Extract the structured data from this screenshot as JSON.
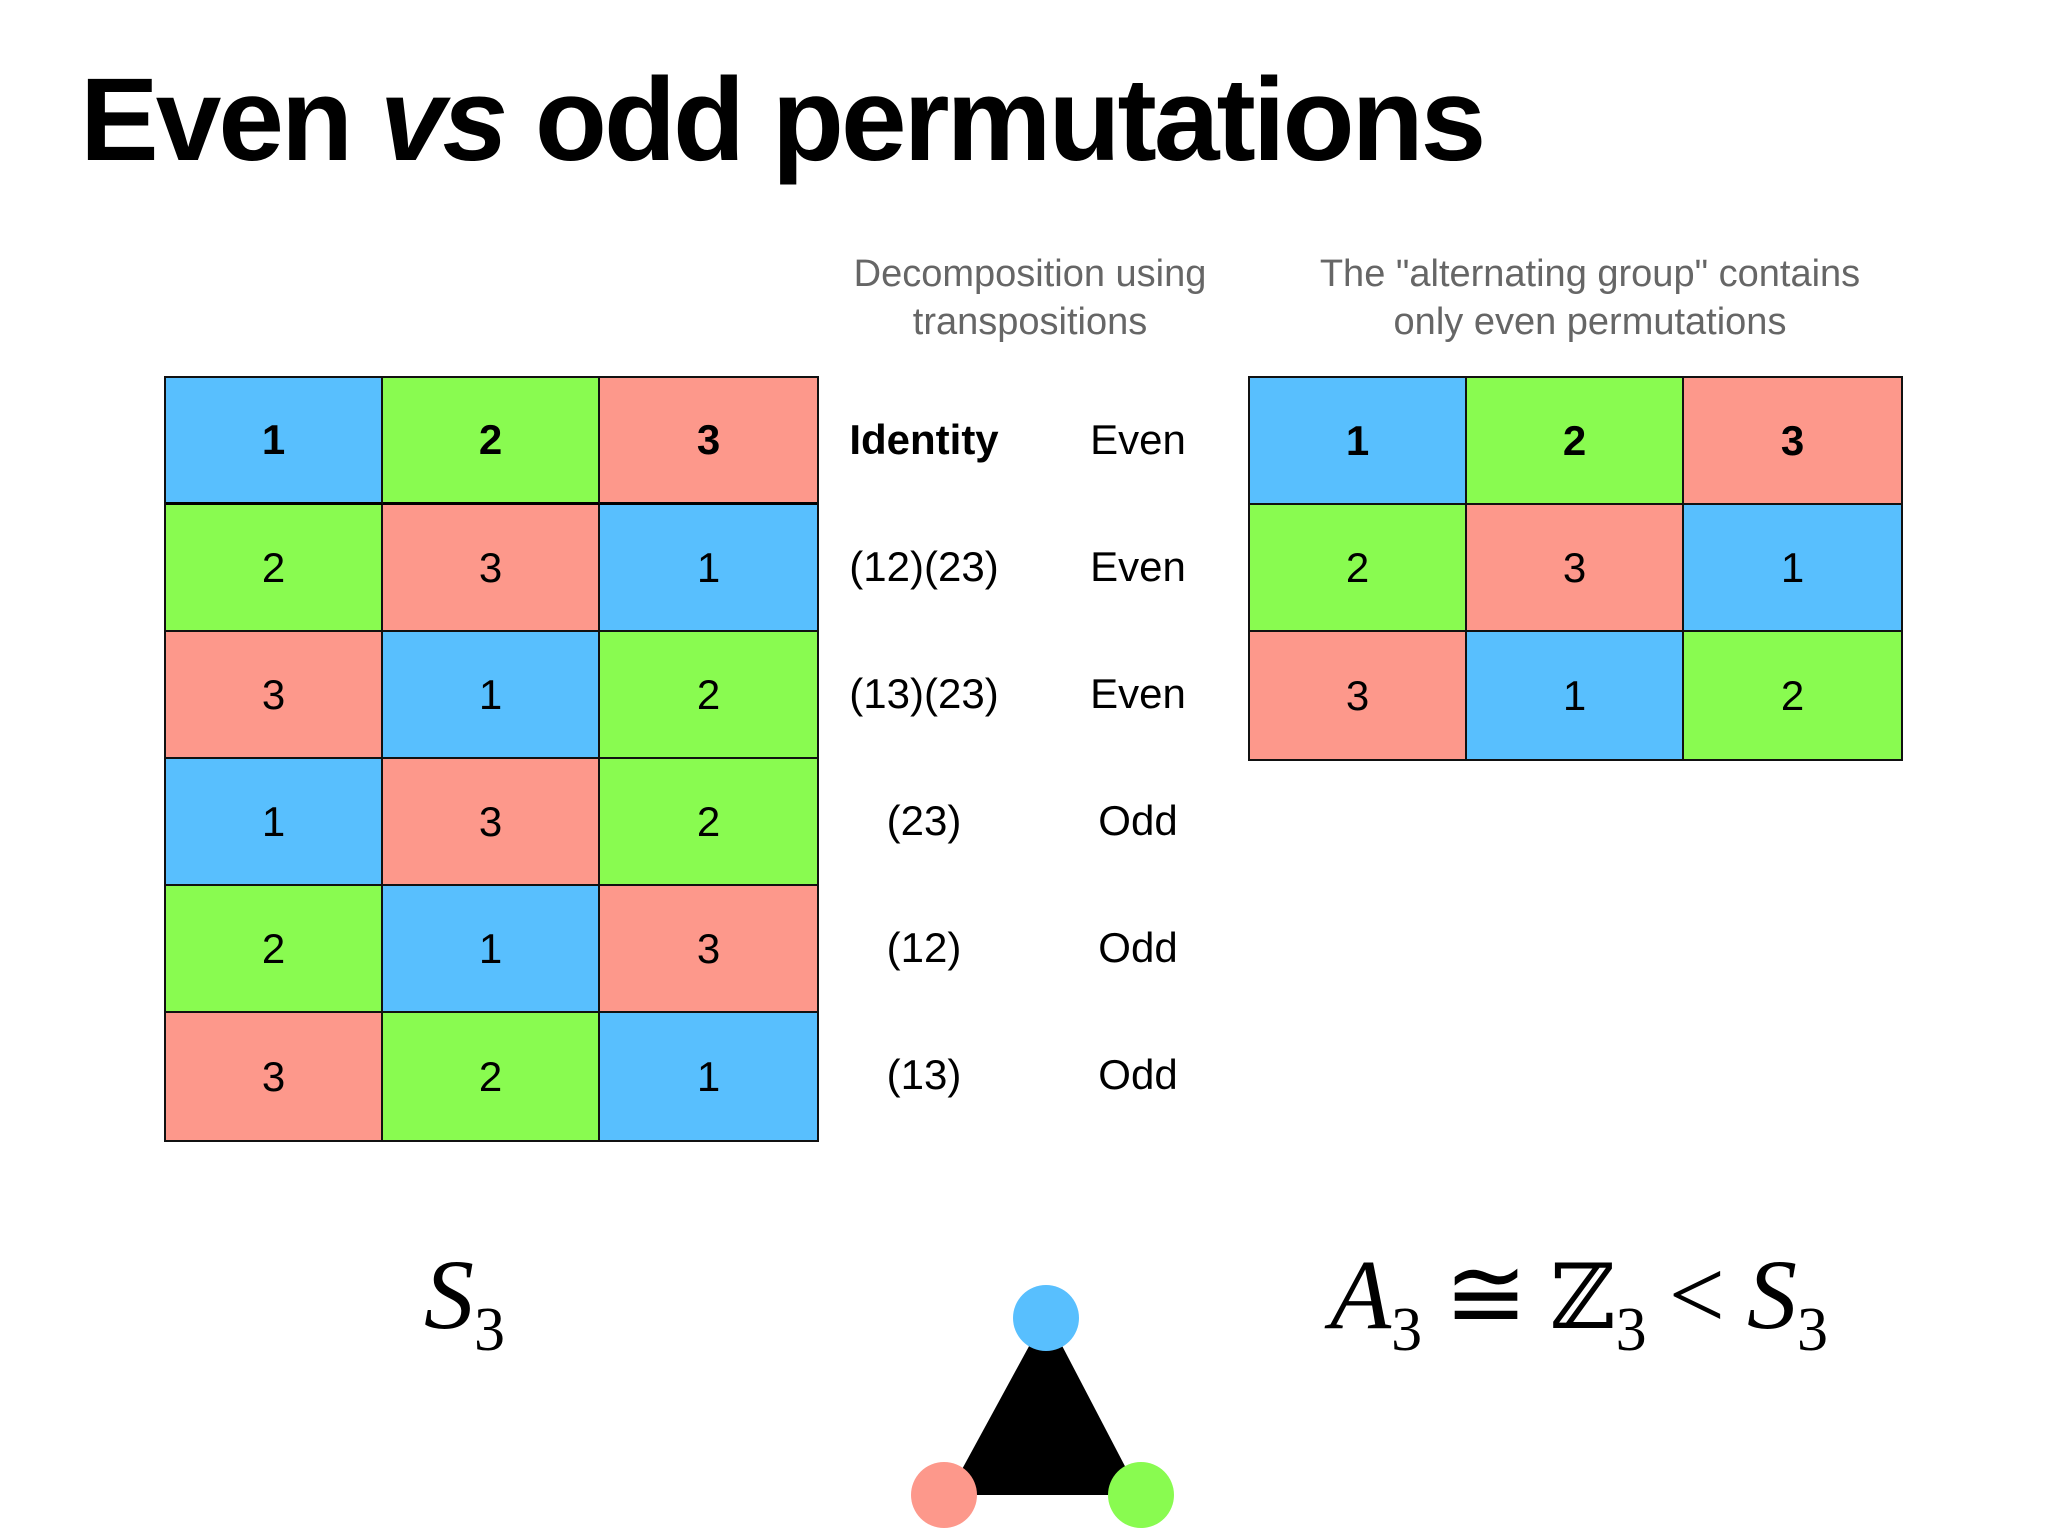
{
  "title": {
    "part1": "Even ",
    "italic": "vs",
    "part2": " odd permutations"
  },
  "captions": {
    "decomposition_line1": "Decomposition using",
    "decomposition_line2": "transpositions",
    "alternating_line1": "The \"alternating group\" contains",
    "alternating_line2": "only even permutations"
  },
  "colors": {
    "1": "#58bffe",
    "2": "#89fb50",
    "3": "#fd988b"
  },
  "s3_table": {
    "header": [
      "1",
      "2",
      "3"
    ],
    "rows": [
      [
        "2",
        "3",
        "1"
      ],
      [
        "3",
        "1",
        "2"
      ],
      [
        "1",
        "3",
        "2"
      ],
      [
        "2",
        "1",
        "3"
      ],
      [
        "3",
        "2",
        "1"
      ]
    ]
  },
  "decomposition": [
    {
      "transpositions": "Identity",
      "parity": "Even"
    },
    {
      "transpositions": "(12)(23)",
      "parity": "Even"
    },
    {
      "transpositions": "(13)(23)",
      "parity": "Even"
    },
    {
      "transpositions": "(23)",
      "parity": "Odd"
    },
    {
      "transpositions": "(12)",
      "parity": "Odd"
    },
    {
      "transpositions": "(13)",
      "parity": "Odd"
    }
  ],
  "a3_table": {
    "header": [
      "1",
      "2",
      "3"
    ],
    "rows": [
      [
        "2",
        "3",
        "1"
      ],
      [
        "3",
        "1",
        "2"
      ]
    ]
  },
  "math": {
    "s3": {
      "letter": "S",
      "sub": "3"
    },
    "a3": {
      "a_letter": "A",
      "a_sub": "3",
      "iso": "≅",
      "z_letter": "ℤ",
      "z_sub": "3",
      "lt": "<",
      "s_letter": "S",
      "s_sub": "3"
    }
  },
  "triangle_icon": "triangle-with-colored-vertices-icon"
}
